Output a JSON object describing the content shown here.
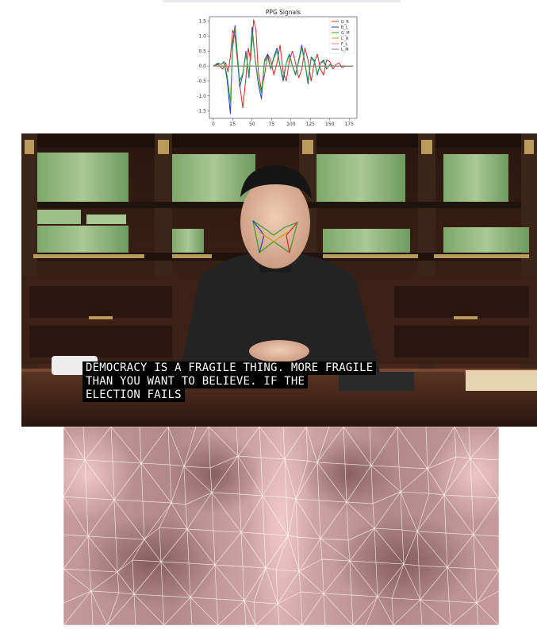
{
  "page": {
    "sections": [
      "ppg-signal-chart",
      "video-frame",
      "face-texture-map"
    ]
  },
  "chart_data": {
    "type": "line",
    "title": "PPG Signals",
    "xlim": [
      -5,
      185
    ],
    "ylim": [
      -1.75,
      1.65
    ],
    "xticks": [
      0,
      25,
      50,
      75,
      100,
      125,
      150,
      175
    ],
    "yticks": [
      -1.5,
      -1.0,
      -0.5,
      0.0,
      0.5,
      1.0,
      1.5
    ],
    "ytick_labels": [
      "-1.5",
      "-1.0",
      "-0.5",
      "0.0",
      "0.5",
      "1.0",
      "1.5"
    ],
    "legend_position": "top-right",
    "series": [
      {
        "name": "G_R",
        "color": "#d62728",
        "x": [
          0,
          6,
          12,
          16,
          19,
          22,
          25,
          28,
          31,
          34,
          38,
          42,
          45,
          48,
          52,
          55,
          58,
          62,
          66,
          70,
          74,
          78,
          82,
          86,
          90,
          94,
          98,
          102,
          106,
          110,
          114,
          118,
          122,
          126,
          130,
          134,
          138,
          142,
          146,
          150,
          154,
          158,
          162,
          166,
          170,
          175,
          180
        ],
        "y": [
          0,
          0.05,
          -0.1,
          0.1,
          -0.2,
          0.3,
          1.2,
          1.0,
          0.2,
          -0.6,
          -1.4,
          -0.4,
          0.6,
          0.2,
          1.55,
          1.2,
          -0.2,
          -0.8,
          -0.3,
          0.4,
          0.2,
          -0.3,
          0.1,
          0.7,
          -0.2,
          -0.5,
          0.2,
          0.5,
          0.1,
          -0.4,
          -0.1,
          0.6,
          0.2,
          -0.5,
          0.1,
          0.4,
          -0.1,
          -0.3,
          0.2,
          0.15,
          -0.1,
          0.05,
          0.1,
          -0.05,
          0,
          0,
          0
        ]
      },
      {
        "name": "B_L",
        "color": "#1f3fcf",
        "x": [
          0,
          6,
          10,
          14,
          18,
          22,
          25,
          28,
          31,
          34,
          38,
          42,
          46,
          50,
          54,
          58,
          62,
          66,
          70,
          74,
          78,
          82,
          86,
          90,
          94,
          98,
          102,
          106,
          110,
          114,
          118,
          122,
          126,
          130,
          134,
          138,
          142,
          146,
          150,
          155,
          160,
          165,
          170,
          175,
          180
        ],
        "y": [
          0,
          0.1,
          0.05,
          0.15,
          -0.5,
          -1.6,
          0.8,
          1.35,
          0.4,
          -0.7,
          -0.3,
          0.5,
          -0.4,
          1.3,
          0.2,
          -0.6,
          -1.1,
          0.2,
          0.4,
          -0.1,
          0.3,
          0.6,
          0.0,
          -0.5,
          0.1,
          0.4,
          0.0,
          -0.3,
          0.2,
          0.7,
          0.1,
          -0.6,
          0.3,
          0.2,
          -0.3,
          0.1,
          0.2,
          -0.1,
          0.05,
          0,
          0,
          0,
          0,
          0,
          0
        ]
      },
      {
        "name": "G_M",
        "color": "#2ca02c",
        "x": [
          0,
          6,
          10,
          14,
          18,
          22,
          25,
          28,
          31,
          34,
          38,
          42,
          46,
          50,
          54,
          58,
          62,
          66,
          70,
          74,
          78,
          82,
          86,
          90,
          94,
          98,
          102,
          106,
          110,
          114,
          118,
          122,
          126,
          130,
          134,
          138,
          142,
          146,
          150,
          155,
          160,
          165,
          170,
          175,
          180
        ],
        "y": [
          0,
          0.08,
          0.05,
          0.12,
          -0.35,
          -1.2,
          0.6,
          1.25,
          0.35,
          -0.5,
          -0.25,
          0.4,
          -0.3,
          1.15,
          0.2,
          -0.5,
          -0.9,
          0.15,
          0.3,
          -0.1,
          0.25,
          0.5,
          0.0,
          -0.4,
          0.1,
          0.35,
          0.0,
          -0.25,
          0.15,
          0.6,
          0.1,
          -0.5,
          0.25,
          0.15,
          -0.25,
          0.1,
          0.15,
          -0.1,
          0.05,
          0,
          0,
          0,
          0,
          0,
          0
        ]
      },
      {
        "name": "C_R",
        "color": "#c8a400",
        "x": [
          0,
          180
        ],
        "y": [
          0,
          0
        ]
      },
      {
        "name": "F_L",
        "color": "#e377c2",
        "x": [
          0,
          180
        ],
        "y": [
          0,
          0
        ]
      },
      {
        "name": "L_M",
        "color": "#7f7f7f",
        "x": [
          0,
          180
        ],
        "y": [
          0,
          0
        ]
      }
    ]
  },
  "video": {
    "subtitle_lines": [
      "DEMOCRACY IS A FRAGILE THING. MORE FRAGILE",
      "THAN YOU WANT TO BELIEVE. IF THE",
      "ELECTION FAILS"
    ],
    "colors": {
      "cabinet": "#3a2216",
      "books": "#8fb37a",
      "gold": "#b89a5a",
      "suit": "#232323",
      "skin": "#e8c0a8",
      "subtitle_bg": "#000000",
      "subtitle_fg": "#ffffff"
    }
  },
  "face_map": {
    "colors": {
      "base": "#c89a9a",
      "light": "#e7bcbc",
      "dark": "#8a5f62",
      "mesh": "#ffffff"
    }
  }
}
